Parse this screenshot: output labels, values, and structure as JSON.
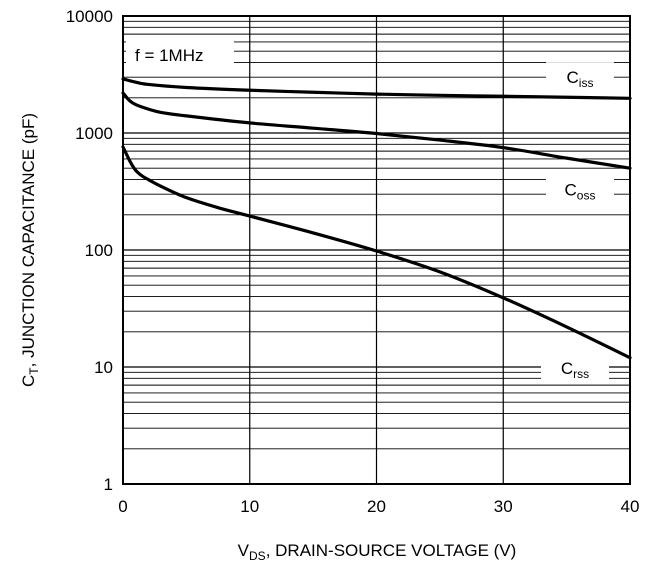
{
  "chart_data": {
    "type": "line",
    "xlabel": {
      "main": "V",
      "sub": "DS",
      "rest": ", DRAIN-SOURCE VOLTAGE (V)"
    },
    "ylabel": {
      "main": "C",
      "sub": "T",
      "rest": ", JUNCTION CAPACITANCE (pF)"
    },
    "xlim": [
      0,
      40
    ],
    "ylim": [
      1,
      10000
    ],
    "yscale": "log",
    "grid": true,
    "x_ticks": [
      0,
      10,
      20,
      30,
      40
    ],
    "x_tick_labels": [
      "0",
      "10",
      "20",
      "30",
      "40"
    ],
    "y_ticks": [
      1,
      10,
      100,
      1000,
      10000
    ],
    "y_tick_labels": [
      "1",
      "10",
      "100",
      "1000",
      "10000"
    ],
    "annotation": "f = 1MHz",
    "series": [
      {
        "name": "Ciss",
        "name_main": "C",
        "name_sub": "iss",
        "x": [
          0,
          1,
          2,
          5,
          10,
          15,
          20,
          25,
          30,
          35,
          40
        ],
        "y": [
          2900,
          2720,
          2600,
          2450,
          2320,
          2230,
          2150,
          2100,
          2060,
          2020,
          1980
        ]
      },
      {
        "name": "Coss",
        "name_main": "C",
        "name_sub": "oss",
        "x": [
          0,
          0.5,
          1,
          2,
          3,
          5,
          10,
          15,
          20,
          25,
          30,
          35,
          40
        ],
        "y": [
          2200,
          1900,
          1750,
          1600,
          1500,
          1400,
          1220,
          1100,
          990,
          870,
          750,
          610,
          500
        ]
      },
      {
        "name": "Crss",
        "name_main": "C",
        "name_sub": "rss",
        "x": [
          0,
          0.3,
          0.6,
          1,
          1.5,
          2,
          3,
          5,
          7.5,
          10,
          15,
          20,
          25,
          30,
          35,
          40
        ],
        "y": [
          760,
          650,
          560,
          480,
          430,
          400,
          350,
          280,
          230,
          195,
          140,
          98,
          65,
          39,
          22,
          12
        ]
      }
    ]
  }
}
